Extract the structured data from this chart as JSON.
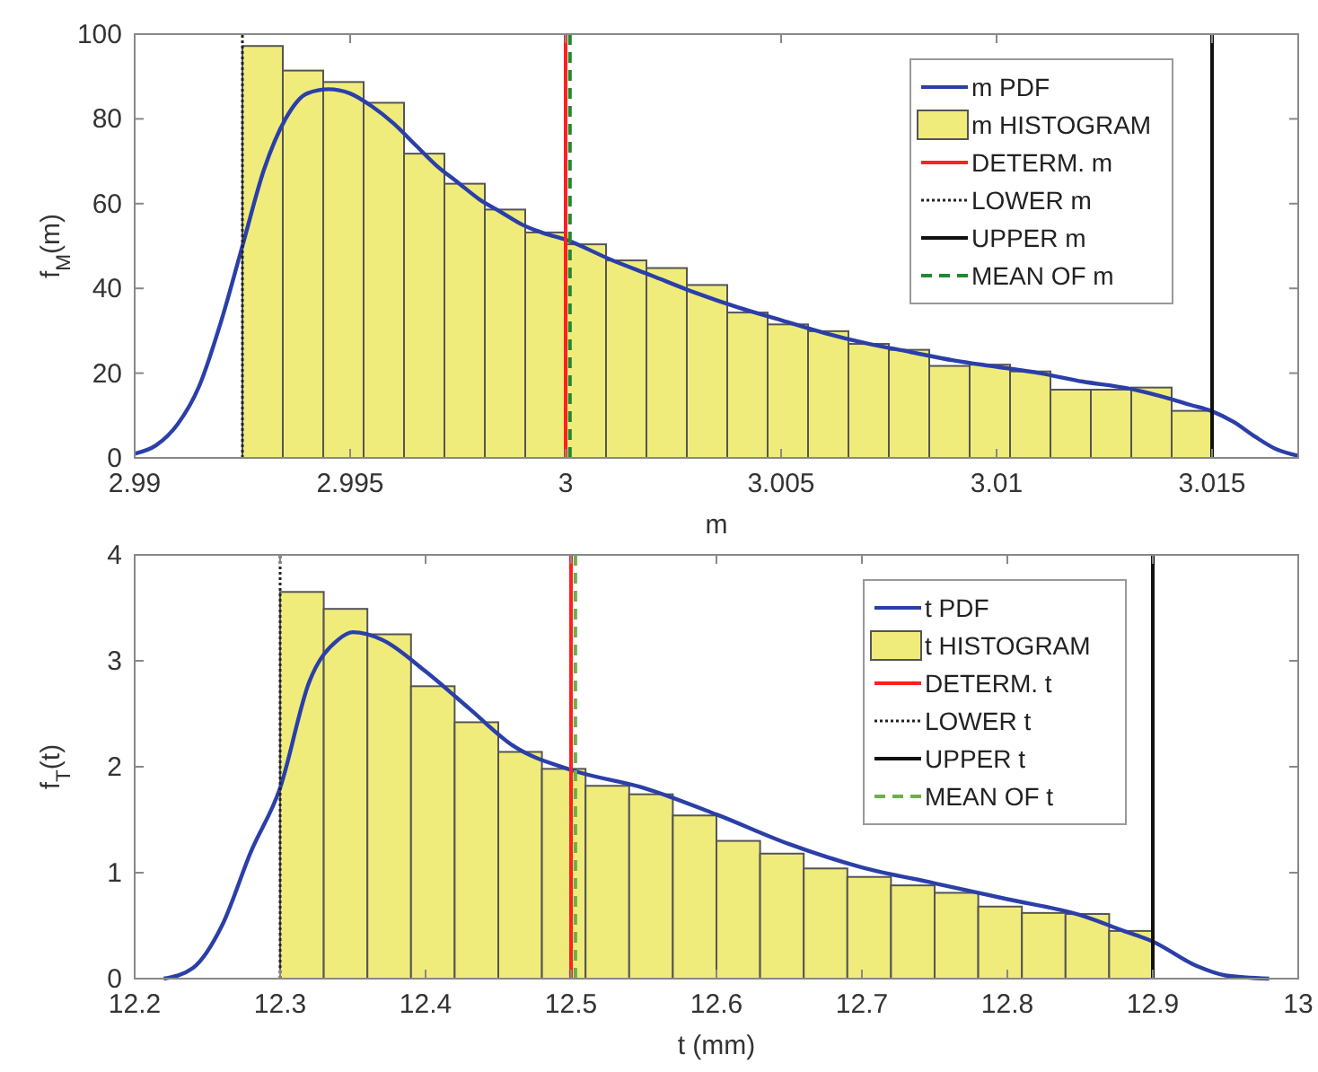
{
  "chart_data": [
    {
      "type": "histogram",
      "xlabel": "m",
      "ylabel": "f$_{M}$(m)",
      "xlim": [
        2.99,
        3.017
      ],
      "ylim": [
        0,
        100
      ],
      "xticks": [
        2.99,
        2.995,
        3,
        3.005,
        3.01,
        3.015
      ],
      "yticks": [
        0,
        20,
        40,
        60,
        80,
        100
      ],
      "grid": false,
      "legend": "top right",
      "series": [
        {
          "name": "m PDF",
          "type": "line",
          "color": "#2b3fa8",
          "x": [
            2.99,
            2.9905,
            2.991,
            2.9915,
            2.992,
            2.9925,
            2.993,
            2.9935,
            2.994,
            2.9945,
            2.995,
            2.9955,
            2.996,
            2.9965,
            2.997,
            2.9975,
            2.998,
            2.9985,
            2.999,
            2.9995,
            3.0,
            3.001,
            3.002,
            3.003,
            3.004,
            3.005,
            3.006,
            3.007,
            3.008,
            3.009,
            3.01,
            3.011,
            3.012,
            3.013,
            3.014,
            3.0145,
            3.015,
            3.0155,
            3.016,
            3.0165,
            3.017
          ],
          "values": [
            1,
            3,
            8,
            17,
            32,
            50,
            68,
            80,
            86,
            87,
            86,
            83,
            79,
            74,
            69,
            65,
            61,
            58,
            55,
            53,
            51.5,
            47,
            43,
            39,
            35.5,
            32.5,
            29.5,
            27,
            25,
            23,
            21.5,
            20,
            18,
            16.5,
            14,
            12.5,
            11,
            8.5,
            5,
            2,
            0.5
          ]
        },
        {
          "name": "m HISTOGRAM",
          "type": "histogram",
          "color": "#efec7c",
          "bins": [
            2.9925,
            2.9934375,
            2.994375,
            2.9953125,
            2.99625,
            2.9971875,
            2.998125,
            2.9990625,
            3.0,
            3.0009375,
            3.001875,
            3.0028125,
            3.00375,
            3.0046875,
            3.005625,
            3.0065625,
            3.0075,
            3.0084375,
            3.009375,
            3.0103125,
            3.01125,
            3.0121875,
            3.013125,
            3.0140625,
            3.015
          ],
          "values": [
            97.2,
            91.4,
            88.7,
            83.8,
            71.8,
            64.7,
            58.6,
            53.2,
            50.4,
            46.6,
            44.8,
            40.8,
            34.3,
            31.5,
            29.9,
            26.9,
            25.5,
            21.7,
            22,
            20.4,
            16.1,
            16.1,
            16.6,
            11.1
          ]
        },
        {
          "name": "DETERM. m",
          "type": "line",
          "color": "#ff2020",
          "line_style": "solid",
          "x": [
            3.0,
            3.0
          ],
          "values": [
            0,
            100
          ]
        },
        {
          "name": "LOWER m",
          "type": "line",
          "color": "#222222",
          "line_style": "dotted",
          "x": [
            2.9925,
            2.9925
          ],
          "values": [
            0,
            100
          ]
        },
        {
          "name": "UPPER m",
          "type": "line",
          "color": "#111111",
          "line_style": "solid",
          "x": [
            3.015,
            3.015
          ],
          "values": [
            0,
            100
          ]
        },
        {
          "name": "MEAN OF m",
          "type": "line",
          "color": "#1e8a2e",
          "line_style": "dashed",
          "x": [
            3.0001,
            3.0001
          ],
          "values": [
            0,
            100
          ]
        }
      ]
    },
    {
      "type": "histogram",
      "xlabel": "t (mm)",
      "ylabel": "f$_{T}$(t)",
      "xlim": [
        12.2,
        13
      ],
      "ylim": [
        0,
        4
      ],
      "xticks": [
        12.2,
        12.3,
        12.4,
        12.5,
        12.6,
        12.7,
        12.8,
        12.9,
        13
      ],
      "yticks": [
        0,
        1,
        2,
        3,
        4
      ],
      "grid": false,
      "legend": "top right",
      "series": [
        {
          "name": "t PDF",
          "type": "line",
          "color": "#2b3fa8",
          "x": [
            12.22,
            12.24,
            12.26,
            12.28,
            12.3,
            12.32,
            12.34,
            12.35,
            12.37,
            12.4,
            12.43,
            12.46,
            12.5,
            12.55,
            12.6,
            12.65,
            12.7,
            12.75,
            12.8,
            12.85,
            12.88,
            12.9,
            12.93,
            12.95,
            12.98
          ],
          "values": [
            0,
            0.1,
            0.5,
            1.2,
            1.8,
            2.8,
            3.2,
            3.27,
            3.2,
            2.9,
            2.55,
            2.2,
            1.97,
            1.8,
            1.55,
            1.27,
            1.05,
            0.9,
            0.75,
            0.6,
            0.45,
            0.35,
            0.12,
            0.03,
            0
          ]
        },
        {
          "name": "t HISTOGRAM",
          "type": "histogram",
          "color": "#efec7c",
          "bins": [
            12.3,
            12.33,
            12.36,
            12.39,
            12.42,
            12.45,
            12.48,
            12.51,
            12.54,
            12.57,
            12.6,
            12.63,
            12.66,
            12.69,
            12.72,
            12.75,
            12.78,
            12.81,
            12.84,
            12.87,
            12.9
          ],
          "values": [
            3.65,
            3.49,
            3.25,
            2.76,
            2.42,
            2.14,
            1.98,
            1.82,
            1.74,
            1.54,
            1.3,
            1.18,
            1.04,
            0.96,
            0.88,
            0.81,
            0.68,
            0.62,
            0.61,
            0.45
          ]
        },
        {
          "name": "DETERM. t",
          "type": "line",
          "color": "#ff2020",
          "line_style": "solid",
          "x": [
            12.5,
            12.5
          ],
          "values": [
            0,
            4
          ]
        },
        {
          "name": "LOWER t",
          "type": "line",
          "color": "#222222",
          "line_style": "dotted",
          "x": [
            12.3,
            12.3
          ],
          "values": [
            0,
            4
          ]
        },
        {
          "name": "UPPER t",
          "type": "line",
          "color": "#111111",
          "line_style": "solid",
          "x": [
            12.9,
            12.9
          ],
          "values": [
            0,
            4
          ]
        },
        {
          "name": "MEAN OF t",
          "type": "line",
          "color": "#6ab04c",
          "line_style": "dashed",
          "x": [
            12.503,
            12.503
          ],
          "values": [
            0,
            4
          ]
        }
      ]
    }
  ]
}
